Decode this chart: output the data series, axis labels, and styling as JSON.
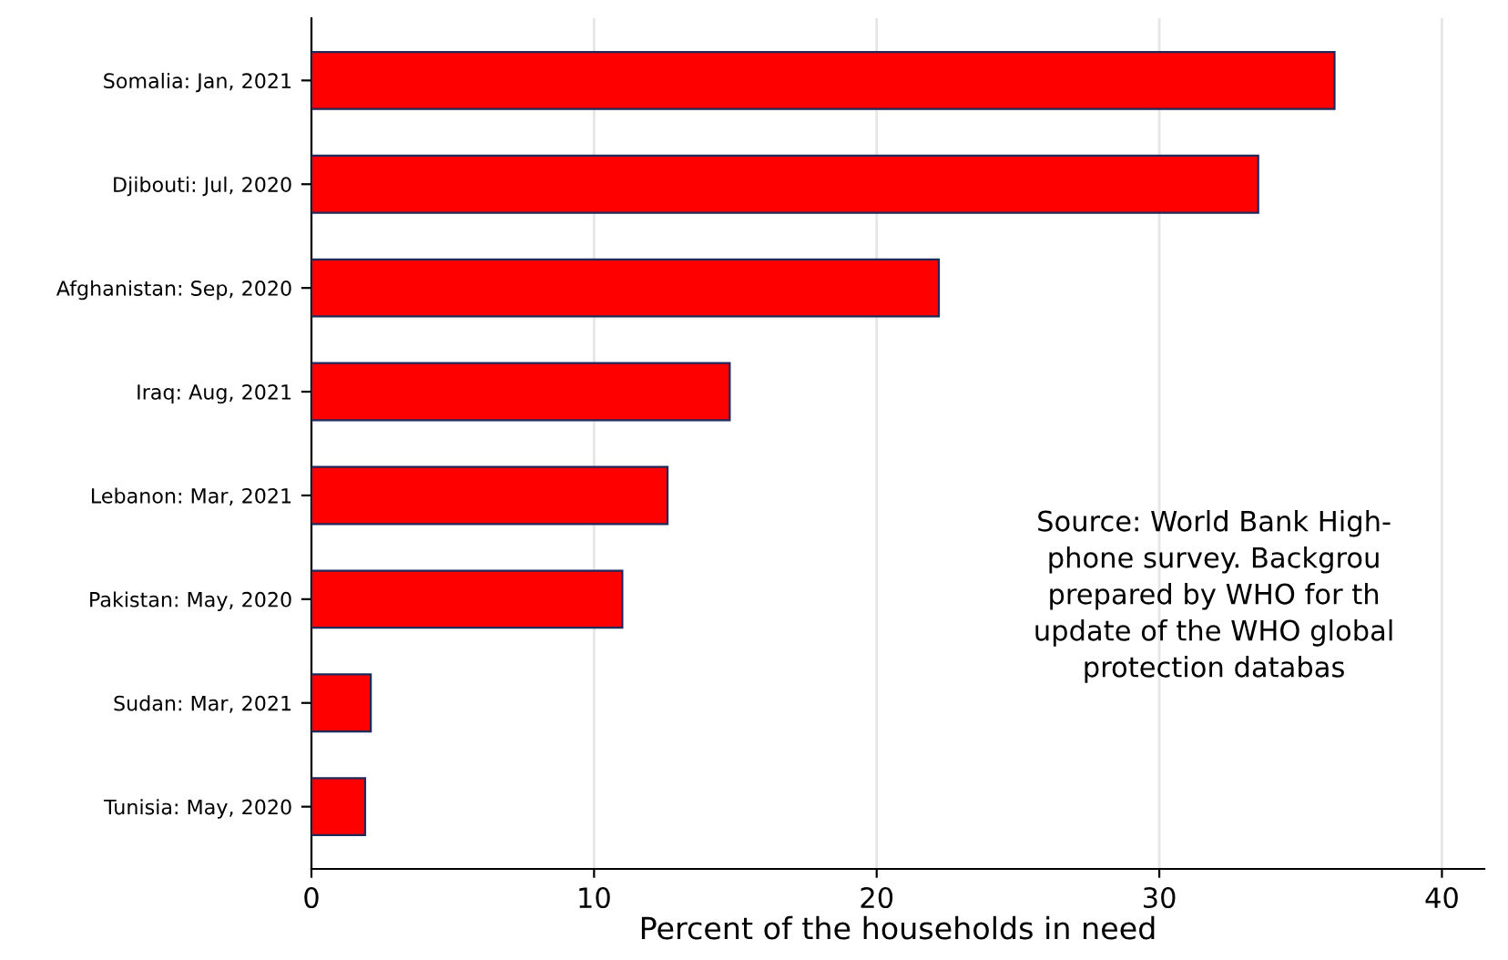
{
  "chart_data": {
    "type": "bar",
    "orientation": "horizontal",
    "xlabel": "Percent of the households in need",
    "categories": [
      "Somalia: Jan, 2021",
      "Djibouti: Jul, 2020",
      "Afghanistan: Sep, 2020",
      "Iraq: Aug, 2021",
      "Lebanon: Mar, 2021",
      "Pakistan: May, 2020",
      "Sudan: Mar, 2021",
      "Tunisia: May, 2020"
    ],
    "values": [
      36.2,
      33.5,
      22.2,
      14.8,
      12.6,
      11.0,
      2.1,
      1.9
    ],
    "color": "#ff0000",
    "xlim": [
      0,
      41.5
    ],
    "xticks": [
      0,
      10,
      20,
      30,
      40
    ],
    "grid": "x",
    "annotations": [
      "Source: World Bank High-\nphone survey. Backgrou\nprepared by WHO for th\nupdate of the WHO global\nprotection databas"
    ]
  }
}
